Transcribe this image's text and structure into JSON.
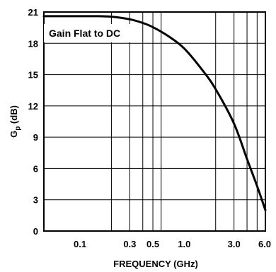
{
  "chart_data": {
    "type": "line",
    "title": "",
    "xlabel": "FREQUENCY (GHz)",
    "ylabel": {
      "main": "G",
      "sub": "p",
      "suffix": " (dB)"
    },
    "xscale": "log",
    "xlim": [
      0.045,
      6.0
    ],
    "ylim": [
      0,
      21
    ],
    "grid": true,
    "x_ticks": [
      {
        "value": 0.1,
        "label": "0.1"
      },
      {
        "value": 0.3,
        "label": "0.3"
      },
      {
        "value": 0.5,
        "label": "0.5"
      },
      {
        "value": 1.0,
        "label": "1.0"
      },
      {
        "value": 3.0,
        "label": "3.0"
      },
      {
        "value": 6.0,
        "label": "6.0"
      }
    ],
    "x_gridlines": [
      0.2,
      0.3,
      0.4,
      0.5,
      0.6,
      2.0,
      3.0,
      4.0,
      5.0
    ],
    "y_ticks": [
      {
        "value": 0,
        "label": "0"
      },
      {
        "value": 3,
        "label": "3"
      },
      {
        "value": 6,
        "label": "6"
      },
      {
        "value": 9,
        "label": "9"
      },
      {
        "value": 12,
        "label": "12"
      },
      {
        "value": 15,
        "label": "15"
      },
      {
        "value": 18,
        "label": "18"
      },
      {
        "value": 21,
        "label": "21"
      }
    ],
    "annotation": "Gain Flat to DC",
    "series": [
      {
        "x": [
          0.045,
          0.1,
          0.15,
          0.2,
          0.3,
          0.4,
          0.5,
          0.7,
          1.0,
          1.5,
          2.0,
          3.0,
          4.0,
          5.0,
          6.0
        ],
        "y": [
          20.6,
          20.6,
          20.6,
          20.55,
          20.3,
          19.95,
          19.55,
          18.7,
          17.5,
          15.4,
          13.6,
          10.3,
          6.9,
          4.3,
          2.0
        ]
      }
    ]
  }
}
